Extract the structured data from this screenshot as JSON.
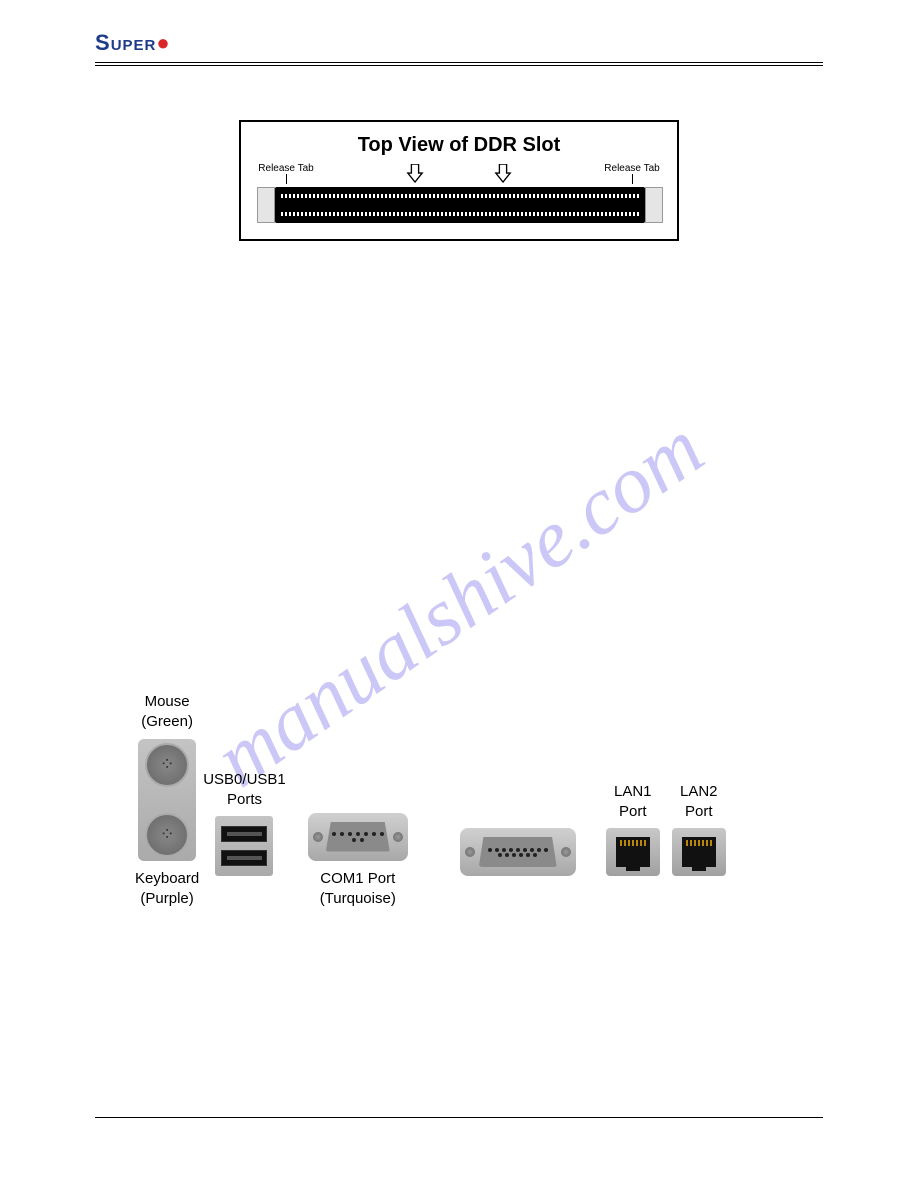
{
  "header": {
    "logo_prefix": "S",
    "logo_mid": "UPER"
  },
  "ddr": {
    "title": "Top View of DDR   Slot",
    "release_tab_left": "Release Tab",
    "release_tab_right": "Release Tab"
  },
  "watermark": {
    "text": "manualshive.com",
    "color": "rgba(140,130,235,0.45)",
    "angle": -35,
    "fontsize": 82
  },
  "io": {
    "mouse_label": "Mouse\n(Green)",
    "keyboard_label": "Keyboard\n(Purple)",
    "usb_label": "USB0/USB1\nPorts",
    "com_label": "COM1 Port\n(Turquoise)",
    "lan1_label": "LAN1\nPort",
    "lan2_label": "LAN2\nPort"
  },
  "colors": {
    "logo_text": "#1e3a8a",
    "logo_dot": "#dc2626",
    "metal_light": "#d0d0d0",
    "metal_dark": "#a0a0a0",
    "port_dark": "#111111"
  }
}
